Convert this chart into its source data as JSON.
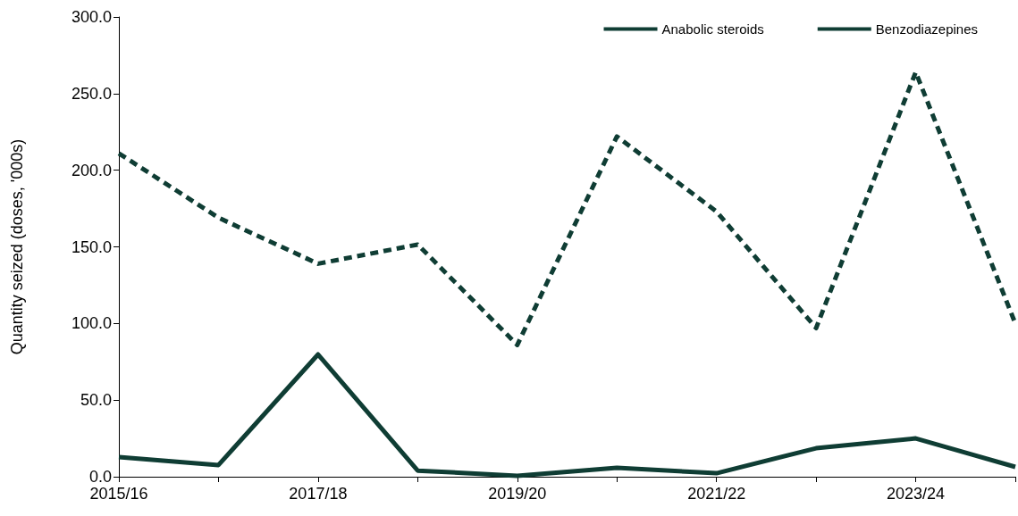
{
  "chart_data": {
    "type": "line",
    "ylabel": "Quantity seized (doses, '000s)",
    "categories": [
      "2015/16",
      null,
      "2017/18",
      null,
      "2019/20",
      null,
      "2021/22",
      null,
      "2023/24",
      null
    ],
    "series": [
      {
        "name": "Anabolic steroids",
        "color": "#0f3d34",
        "line_style": "solid",
        "values": [
          12.8,
          7.6,
          79.8,
          4,
          0.6,
          5.8,
          2.3,
          18.6,
          25,
          6.4
        ]
      },
      {
        "name": "Benzodiazepines",
        "color": "#0f3d34",
        "line_style": "dashed",
        "values": [
          211,
          169,
          139,
          151.5,
          86,
          222,
          173,
          97,
          264,
          100
        ]
      }
    ],
    "ylim": [
      0,
      300
    ],
    "yticks": [
      {
        "value": 0,
        "label": "0.0"
      },
      {
        "value": 50,
        "label": "50.0"
      },
      {
        "value": 100,
        "label": "100.0"
      },
      {
        "value": 150,
        "label": "150.0"
      },
      {
        "value": 200,
        "label": "200.0"
      },
      {
        "value": 250,
        "label": "250.0"
      },
      {
        "value": 300,
        "label": "300.0"
      }
    ],
    "grid": false,
    "legend": "top right",
    "marker": "none"
  }
}
